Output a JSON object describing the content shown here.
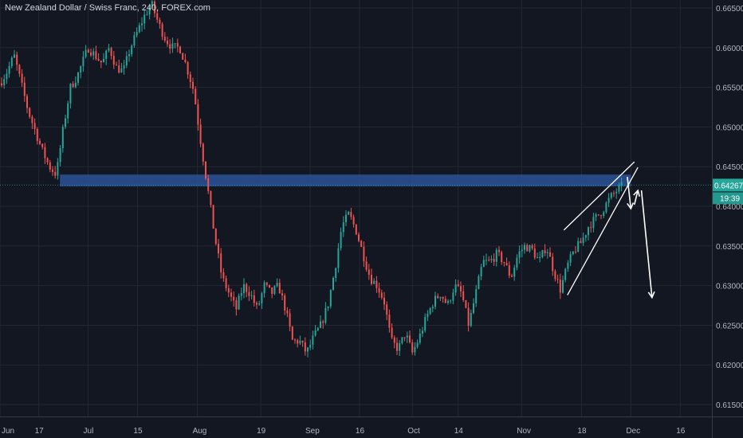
{
  "header": {
    "title": "New Zealand Dollar / Swiss Franc, 240, FOREX.com"
  },
  "colors": {
    "background": "#131722",
    "grid": "#242733",
    "axis_text": "#b2b5be",
    "up_candle": "#26a69a",
    "down_candle": "#ef5350",
    "zone": "#2a5298",
    "last_price_tag": "#26a69a",
    "countdown_tag": "#26a69a",
    "drawing": "#ffffff"
  },
  "chart_data": {
    "type": "candlestick",
    "title": "New Zealand Dollar / Swiss Franc, 240, FOREX.com",
    "x_axis": {
      "tick_labels": [
        "Jun",
        "17",
        "Jul",
        "15",
        "Aug",
        "19",
        "Sep",
        "16",
        "Oct",
        "14",
        "Nov",
        "18",
        "Dec",
        "16"
      ],
      "x_range": [
        "2019-06-06",
        "2019-12-25"
      ]
    },
    "y_axis": {
      "position": "right",
      "tick_labels": [
        "0.66500",
        "0.66000",
        "0.65500",
        "0.65000",
        "0.64500",
        "0.64000",
        "0.63500",
        "0.63000",
        "0.62500",
        "0.62000",
        "0.61500"
      ],
      "ylim": [
        0.6135,
        0.666
      ]
    },
    "grid": true,
    "last_price": "0.64267",
    "countdown": "19:39",
    "price_path": [
      [
        "2019-06-06",
        0.6555
      ],
      [
        "2019-06-08",
        0.657
      ],
      [
        "2019-06-10",
        0.659
      ],
      [
        "2019-06-12",
        0.6555
      ],
      [
        "2019-06-14",
        0.652
      ],
      [
        "2019-06-16",
        0.6495
      ],
      [
        "2019-06-18",
        0.647
      ],
      [
        "2019-06-20",
        0.645
      ],
      [
        "2019-06-22",
        0.644
      ],
      [
        "2019-06-24",
        0.65
      ],
      [
        "2019-06-26",
        0.655
      ],
      [
        "2019-06-28",
        0.6565
      ],
      [
        "2019-07-01",
        0.66
      ],
      [
        "2019-07-03",
        0.659
      ],
      [
        "2019-07-05",
        0.658
      ],
      [
        "2019-07-07",
        0.66
      ],
      [
        "2019-07-09",
        0.6575
      ],
      [
        "2019-07-11",
        0.657
      ],
      [
        "2019-07-13",
        0.66
      ],
      [
        "2019-07-15",
        0.662
      ],
      [
        "2019-07-17",
        0.664
      ],
      [
        "2019-07-19",
        0.6655
      ],
      [
        "2019-07-21",
        0.663
      ],
      [
        "2019-07-23",
        0.661
      ],
      [
        "2019-07-25",
        0.66
      ],
      [
        "2019-07-27",
        0.66
      ],
      [
        "2019-07-29",
        0.6575
      ],
      [
        "2019-07-31",
        0.6545
      ],
      [
        "2019-08-02",
        0.648
      ],
      [
        "2019-08-04",
        0.642
      ],
      [
        "2019-08-06",
        0.636
      ],
      [
        "2019-08-08",
        0.631
      ],
      [
        "2019-08-10",
        0.629
      ],
      [
        "2019-08-12",
        0.627
      ],
      [
        "2019-08-14",
        0.63
      ],
      [
        "2019-08-16",
        0.629
      ],
      [
        "2019-08-18",
        0.627
      ],
      [
        "2019-08-20",
        0.63
      ],
      [
        "2019-08-22",
        0.629
      ],
      [
        "2019-08-24",
        0.63
      ],
      [
        "2019-08-26",
        0.627
      ],
      [
        "2019-08-28",
        0.623
      ],
      [
        "2019-08-30",
        0.623
      ],
      [
        "2019-09-01",
        0.6215
      ],
      [
        "2019-09-03",
        0.6235
      ],
      [
        "2019-09-05",
        0.625
      ],
      [
        "2019-09-07",
        0.6275
      ],
      [
        "2019-09-09",
        0.632
      ],
      [
        "2019-09-11",
        0.6375
      ],
      [
        "2019-09-13",
        0.639
      ],
      [
        "2019-09-15",
        0.637
      ],
      [
        "2019-09-17",
        0.634
      ],
      [
        "2019-09-19",
        0.631
      ],
      [
        "2019-09-21",
        0.63
      ],
      [
        "2019-09-23",
        0.628
      ],
      [
        "2019-09-25",
        0.623
      ],
      [
        "2019-09-27",
        0.622
      ],
      [
        "2019-09-29",
        0.624
      ],
      [
        "2019-10-01",
        0.6215
      ],
      [
        "2019-10-03",
        0.6235
      ],
      [
        "2019-10-05",
        0.626
      ],
      [
        "2019-10-07",
        0.628
      ],
      [
        "2019-10-09",
        0.629
      ],
      [
        "2019-10-11",
        0.6275
      ],
      [
        "2019-10-13",
        0.63
      ],
      [
        "2019-10-15",
        0.629
      ],
      [
        "2019-10-17",
        0.625
      ],
      [
        "2019-10-19",
        0.629
      ],
      [
        "2019-10-21",
        0.633
      ],
      [
        "2019-10-23",
        0.633
      ],
      [
        "2019-10-25",
        0.634
      ],
      [
        "2019-10-27",
        0.633
      ],
      [
        "2019-10-29",
        0.631
      ],
      [
        "2019-10-31",
        0.634
      ],
      [
        "2019-11-02",
        0.635
      ],
      [
        "2019-11-04",
        0.6345
      ],
      [
        "2019-11-06",
        0.633
      ],
      [
        "2019-11-08",
        0.635
      ],
      [
        "2019-11-10",
        0.632
      ],
      [
        "2019-11-12",
        0.6295
      ],
      [
        "2019-11-14",
        0.6325
      ],
      [
        "2019-11-16",
        0.6345
      ],
      [
        "2019-11-18",
        0.6355
      ],
      [
        "2019-11-20",
        0.6375
      ],
      [
        "2019-11-22",
        0.6385
      ],
      [
        "2019-11-24",
        0.6395
      ],
      [
        "2019-11-26",
        0.641
      ],
      [
        "2019-11-28",
        0.642
      ],
      [
        "2019-11-30",
        0.6427
      ]
    ],
    "supply_zone": {
      "from": "2019-06-23",
      "to": "2019-12-02",
      "low": 0.6425,
      "high": 0.644
    },
    "trend_lines": [
      {
        "from": [
          "2019-11-13",
          0.637
        ],
        "to": [
          "2019-12-03",
          0.6456
        ]
      },
      {
        "from": [
          "2019-11-14",
          0.6288
        ],
        "to": [
          "2019-12-04",
          0.6449
        ]
      }
    ],
    "arrows": [
      {
        "from": [
          "2019-12-01",
          0.6437
        ],
        "to": [
          "2019-12-02",
          0.6397
        ]
      },
      {
        "from": [
          "2019-12-03",
          0.6402
        ],
        "to": [
          "2019-12-04",
          0.642
        ]
      },
      {
        "from": [
          "2019-12-05",
          0.642
        ],
        "to": [
          "2019-12-08",
          0.6285
        ]
      }
    ]
  }
}
